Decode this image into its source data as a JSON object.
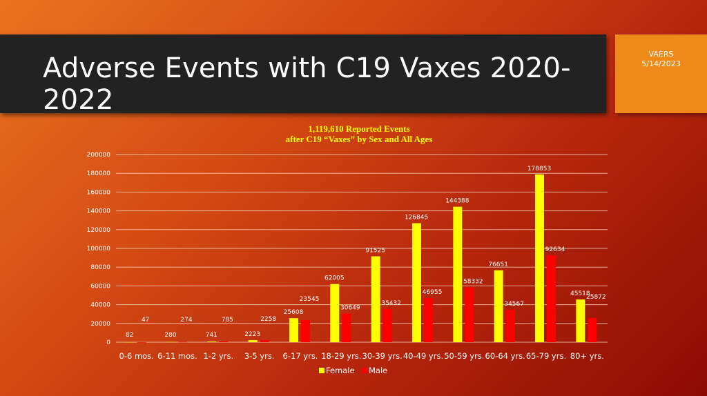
{
  "slide": {
    "title": "Adverse Events with C19 Vaxes 2020-2022",
    "source": "VAERS",
    "date": "5/14/2023"
  },
  "chart_data": {
    "type": "bar",
    "title": "1,119,610 Reported Events",
    "subtitle": "after C19 “Vaxes” by Sex and All Ages",
    "categories": [
      "0-6 mos.",
      "6-11 mos.",
      "1-2 yrs.",
      "3-5 yrs.",
      "6-17 yrs.",
      "18-29 yrs.",
      "30-39 yrs.",
      "40-49 yrs.",
      "50-59 yrs.",
      "60-64 yrs.",
      "65-79 yrs.",
      "80+ yrs."
    ],
    "series": [
      {
        "name": "Female",
        "color": "#ffff00",
        "values": [
          82,
          280,
          741,
          2223,
          25608,
          62005,
          91525,
          126845,
          144388,
          76651,
          178853,
          45518
        ]
      },
      {
        "name": "Male",
        "color": "#ff0000",
        "values": [
          47,
          274,
          785,
          2258,
          23545,
          30649,
          35432,
          46955,
          58332,
          34567,
          92634,
          25872
        ]
      }
    ],
    "yticks": [
      0,
      20000,
      40000,
      60000,
      80000,
      100000,
      120000,
      140000,
      160000,
      180000,
      200000
    ],
    "ylim": [
      0,
      200000
    ],
    "grid": true,
    "legend": "bottom"
  }
}
